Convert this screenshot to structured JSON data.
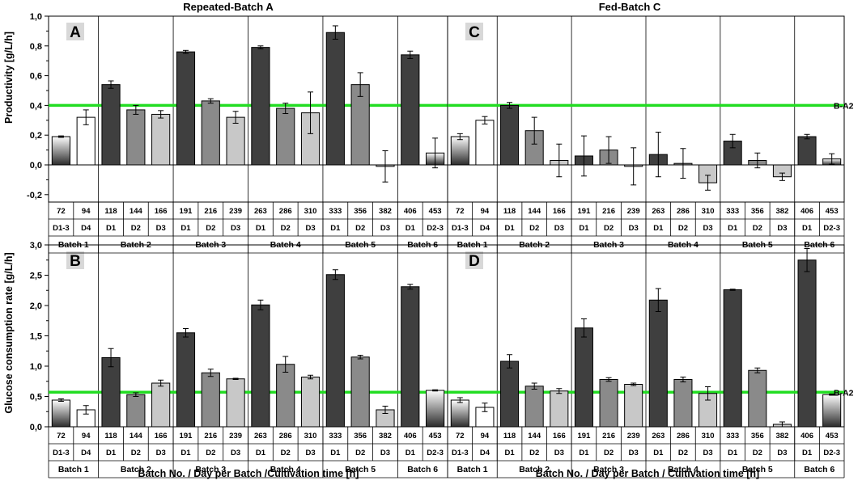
{
  "titles": {
    "left": "Repeated-Batch A",
    "right": "Fed-Batch C"
  },
  "ylabels": {
    "top": "Productivity [g/L/h]",
    "bottom": "Glucose consumption rate [g/L/h]"
  },
  "xlabels": {
    "left": "Batch No. / Day per Batch /Cultivation time [h]",
    "right": "Batch No. / Day per Batch / Cultivation time [h]"
  },
  "colors": {
    "d1": "#3f3f3f",
    "d2": "#8a8a8a",
    "d3": "#c8c8c8",
    "d4": "#ffffff",
    "ref": "#22dd22"
  },
  "table": {
    "hours": [
      "72",
      "94",
      "118",
      "144",
      "166",
      "191",
      "216",
      "239",
      "263",
      "286",
      "310",
      "333",
      "356",
      "382",
      "406",
      "453"
    ],
    "days": [
      "D1-3",
      "D4",
      "D1",
      "D2",
      "D3",
      "D1",
      "D2",
      "D3",
      "D1",
      "D2",
      "D3",
      "D1",
      "D2",
      "D3",
      "D1",
      "D2-3"
    ],
    "batches": [
      {
        "label": "Batch 1",
        "span": 2
      },
      {
        "label": "Batch 2",
        "span": 3
      },
      {
        "label": "Batch 3",
        "span": 3
      },
      {
        "label": "Batch 4",
        "span": 3
      },
      {
        "label": "Batch 5",
        "span": 3
      },
      {
        "label": "Batch 6",
        "span": 2
      }
    ]
  },
  "chart_data": [
    {
      "panel": "A",
      "type": "bar",
      "title": "Repeated-Batch A",
      "ylabel": "Productivity [g/L/h]",
      "ylim": [
        -0.25,
        1.0
      ],
      "yticks": [
        "-0,2",
        "0,0",
        "0,2",
        "0,4",
        "0,6",
        "0,8",
        "1,0"
      ],
      "ytick_values": [
        -0.2,
        0,
        0.2,
        0.4,
        0.6,
        0.8,
        1.0
      ],
      "reference": {
        "label": "B-A2",
        "value": 0.4
      },
      "values": [
        0.19,
        0.32,
        0.54,
        0.37,
        0.34,
        0.76,
        0.43,
        0.32,
        0.79,
        0.38,
        0.35,
        0.89,
        0.54,
        -0.01,
        0.74,
        0.08
      ],
      "errors": [
        0.005,
        0.05,
        0.025,
        0.03,
        0.025,
        0.01,
        0.015,
        0.04,
        0.01,
        0.035,
        0.14,
        0.045,
        0.08,
        0.105,
        0.025,
        0.1
      ]
    },
    {
      "panel": "C",
      "type": "bar",
      "title": "Fed-Batch C",
      "ylabel": "Productivity [g/L/h]",
      "ylim": [
        -0.25,
        1.0
      ],
      "yticks": [
        "-0,2",
        "0,0",
        "0,2",
        "0,4",
        "0,6",
        "0,8",
        "1,0"
      ],
      "ytick_values": [
        -0.2,
        0,
        0.2,
        0.4,
        0.6,
        0.8,
        1.0
      ],
      "reference": {
        "label": "B-A2",
        "value": 0.4
      },
      "values": [
        0.19,
        0.3,
        0.4,
        0.23,
        0.03,
        0.06,
        0.1,
        -0.01,
        0.07,
        0.01,
        -0.12,
        0.16,
        0.03,
        -0.08,
        0.19,
        0.04
      ],
      "errors": [
        0.02,
        0.025,
        0.02,
        0.09,
        0.11,
        0.135,
        0.09,
        0.125,
        0.15,
        0.1,
        0.05,
        0.045,
        0.05,
        0.025,
        0.015,
        0.035
      ]
    },
    {
      "panel": "B",
      "type": "bar",
      "title": "Repeated-Batch A",
      "ylabel": "Glucose consumption rate [g/L/h]",
      "ylim": [
        0,
        3.0
      ],
      "yticks": [
        "0,0",
        "0,5",
        "1,0",
        "1,5",
        "2,0",
        "2,5",
        "3,0"
      ],
      "ytick_values": [
        0,
        0.5,
        1.0,
        1.5,
        2.0,
        2.5,
        3.0
      ],
      "reference": {
        "label": "",
        "value": 0.57
      },
      "values": [
        0.44,
        0.28,
        1.14,
        0.53,
        0.72,
        1.55,
        0.89,
        0.79,
        2.01,
        1.03,
        0.82,
        2.51,
        1.15,
        0.28,
        2.31,
        0.6
      ],
      "errors": [
        0.02,
        0.07,
        0.15,
        0.03,
        0.05,
        0.07,
        0.06,
        0.01,
        0.08,
        0.13,
        0.03,
        0.08,
        0.03,
        0.06,
        0.04,
        0.01
      ]
    },
    {
      "panel": "D",
      "type": "bar",
      "title": "Fed-Batch C",
      "ylabel": "Glucose consumption rate [g/L/h]",
      "ylim": [
        0,
        3.0
      ],
      "yticks": [
        "0,0",
        "0,5",
        "1,0",
        "1,5",
        "2,0",
        "2,5",
        "3,0"
      ],
      "ytick_values": [
        0,
        0.5,
        1.0,
        1.5,
        2.0,
        2.5,
        3.0
      ],
      "reference": {
        "label": "B-A2",
        "value": 0.57
      },
      "values": [
        0.44,
        0.32,
        1.08,
        0.67,
        0.59,
        1.63,
        0.78,
        0.7,
        2.09,
        0.78,
        0.55,
        2.26,
        0.93,
        0.04,
        2.75,
        0.53
      ],
      "errors": [
        0.04,
        0.07,
        0.11,
        0.05,
        0.04,
        0.15,
        0.03,
        0.02,
        0.19,
        0.04,
        0.11,
        0.01,
        0.04,
        0.04,
        0.19,
        0.01
      ]
    }
  ]
}
